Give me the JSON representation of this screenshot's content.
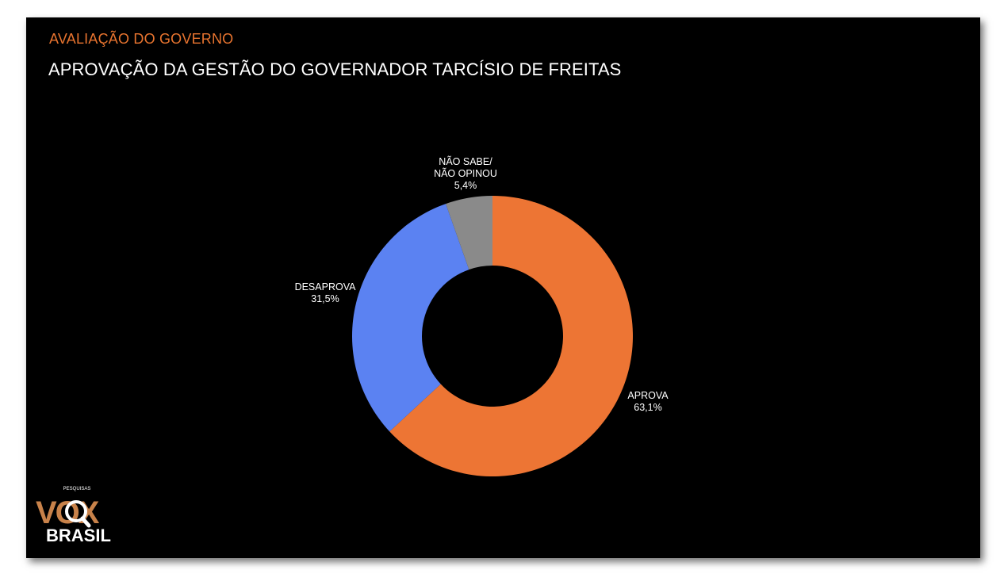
{
  "header": {
    "kicker": "AVALIAÇÃO DO GOVERNO",
    "title": "APROVAÇÃO DA GESTÃO DO GOVERNADOR TARCÍSIO DE FREITAS"
  },
  "colors": {
    "kicker": "#e8742f",
    "background": "#000000"
  },
  "chart_data": {
    "type": "pie",
    "style": "donut",
    "title": "APROVAÇÃO DA GESTÃO DO GOVERNADOR TARCÍSIO DE FREITAS",
    "slices": [
      {
        "label": [
          "APROVA"
        ],
        "value": 63.1,
        "value_label": "63,1%",
        "color": "#ed7534"
      },
      {
        "label": [
          "DESAPROVA"
        ],
        "value": 31.5,
        "value_label": "31,5%",
        "color": "#5b82f2"
      },
      {
        "label": [
          "NÃO SABE/",
          "NÃO OPINOU"
        ],
        "value": 5.4,
        "value_label": "5,4%",
        "color": "#8a8a8a"
      }
    ],
    "start_angle_deg": 0,
    "direction": "clockwise",
    "legend": "none"
  },
  "logo": {
    "top_text": "PESQUISAS",
    "brand_text": "VOX",
    "bottom_text": "BRASIL",
    "icon": "magnifier-icon",
    "color": "#c8824a"
  }
}
